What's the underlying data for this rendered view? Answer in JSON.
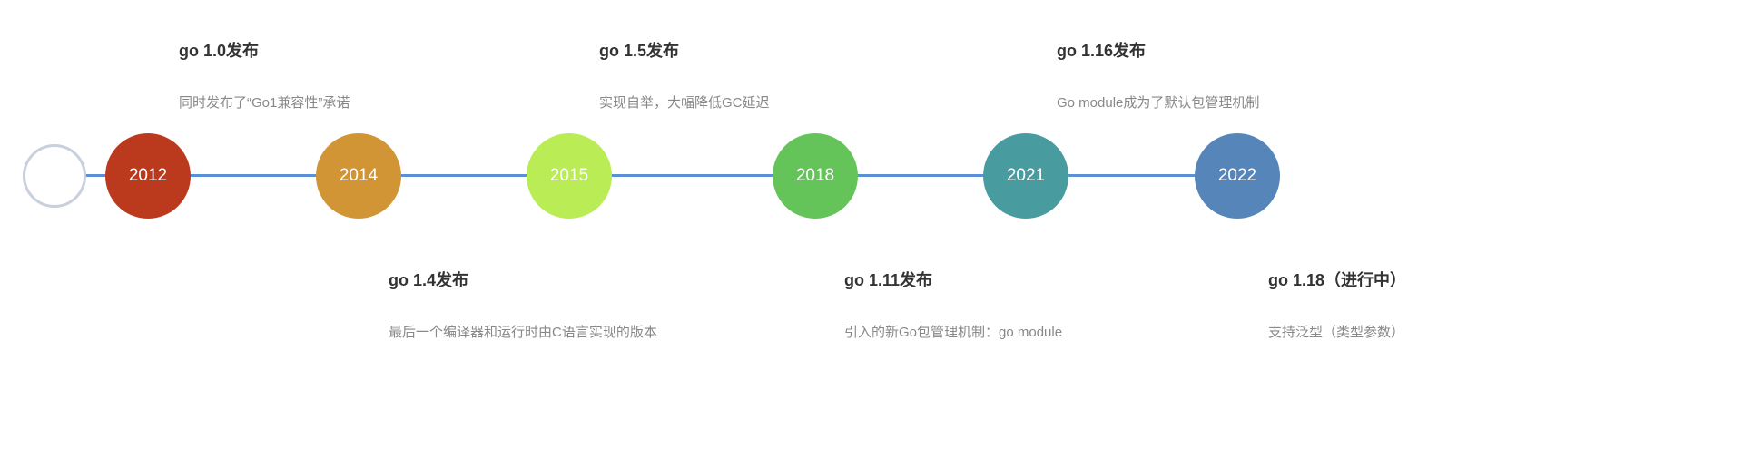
{
  "nodes": [
    {
      "year": "2012",
      "color": "#bb3a1e"
    },
    {
      "year": "2014",
      "color": "#d19535"
    },
    {
      "year": "2015",
      "color": "#b9ec55"
    },
    {
      "year": "2018",
      "color": "#64c45a"
    },
    {
      "year": "2021",
      "color": "#489b9e"
    },
    {
      "year": "2022",
      "color": "#5685b9"
    }
  ],
  "events": [
    {
      "title": "go 1.0发布",
      "desc": "同时发布了“Go1兼容性”承诺"
    },
    {
      "title": "go 1.4发布",
      "desc": "最后一个编译器和运行时由C语言实现的版本"
    },
    {
      "title": "go 1.5发布",
      "desc": "实现自举，大幅降低GC延迟"
    },
    {
      "title": "go 1.11发布",
      "desc": "引入的新Go包管理机制：go module"
    },
    {
      "title": "go 1.16发布",
      "desc": "Go module成为了默认包管理机制"
    },
    {
      "title": "go 1.18（进行中）",
      "desc": "支持泛型（类型参数）"
    }
  ]
}
